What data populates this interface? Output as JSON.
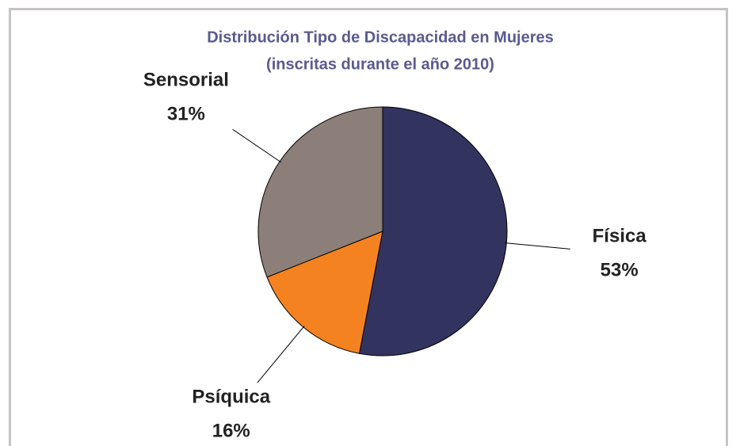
{
  "chart_data": {
    "type": "pie",
    "title": "Distribución Tipo de Discapacidad en Mujeres",
    "subtitle": "(inscritas durante el año 2010)",
    "categories": [
      "Física",
      "Psíquica",
      "Sensorial"
    ],
    "values": [
      53,
      16,
      31
    ],
    "value_labels": [
      "53%",
      "16%",
      "31%"
    ],
    "colors": [
      "#333360",
      "#f58220",
      "#8c7f7a"
    ]
  }
}
